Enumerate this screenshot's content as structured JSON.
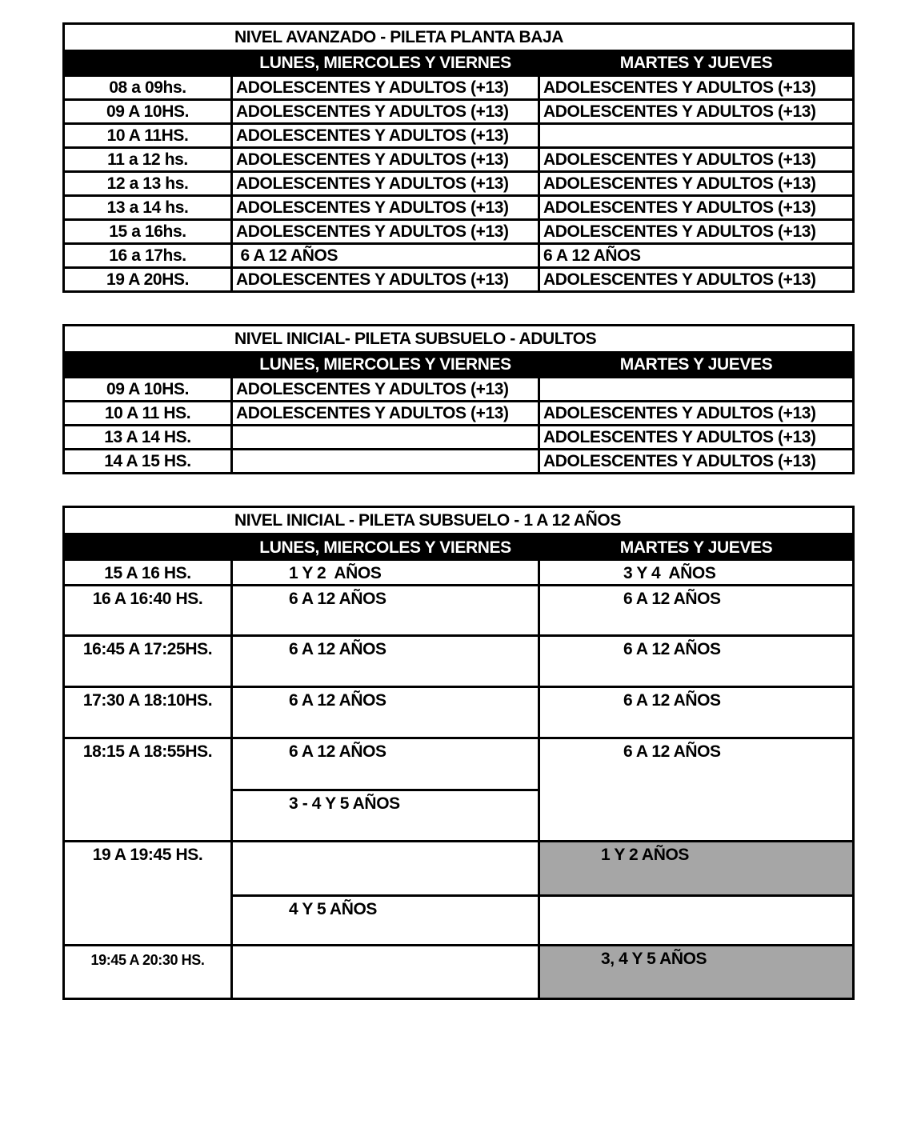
{
  "colors": {
    "page_bg": "#ffffff",
    "header_bg": "#000000",
    "header_text": "#ffffff",
    "shaded_cell": "#a6a6a6",
    "border": "#000000",
    "text": "#000000"
  },
  "tables": [
    {
      "title": "NIVEL AVANZADO - PILETA PLANTA BAJA",
      "header": {
        "col1": "",
        "col2": "LUNES, MIERCOLES Y VIERNES",
        "col3": "MARTES Y JUEVES"
      },
      "rows": [
        {
          "time": "08 a 09hs.",
          "lmv": "ADOLESCENTES Y ADULTOS (+13)",
          "mj": "ADOLESCENTES Y ADULTOS (+13)"
        },
        {
          "time": "09 A 10HS.",
          "lmv": "ADOLESCENTES Y ADULTOS (+13)",
          "mj": "ADOLESCENTES Y ADULTOS (+13)"
        },
        {
          "time": "10 A 11HS.",
          "lmv": "ADOLESCENTES Y ADULTOS (+13)",
          "mj": ""
        },
        {
          "time": "11 a 12 hs.",
          "lmv": "ADOLESCENTES Y ADULTOS (+13)",
          "mj": "ADOLESCENTES Y ADULTOS (+13)"
        },
        {
          "time": "12 a 13 hs.",
          "lmv": "ADOLESCENTES Y ADULTOS (+13)",
          "mj": "ADOLESCENTES Y ADULTOS (+13)"
        },
        {
          "time": "13 a 14 hs.",
          "lmv": "ADOLESCENTES Y ADULTOS (+13)",
          "mj": "ADOLESCENTES Y ADULTOS (+13)"
        },
        {
          "time": "15 a 16hs.",
          "lmv": "ADOLESCENTES Y ADULTOS (+13)",
          "mj": "ADOLESCENTES Y ADULTOS (+13)"
        },
        {
          "time": "16 a 17hs.",
          "lmv": " 6 A 12 AÑOS",
          "mj": "6 A 12 AÑOS"
        },
        {
          "time": "19 A 20HS.",
          "lmv": "ADOLESCENTES Y ADULTOS (+13)",
          "mj": "ADOLESCENTES Y ADULTOS (+13)"
        }
      ]
    },
    {
      "title": "NIVEL INICIAL- PILETA SUBSUELO - ADULTOS",
      "header": {
        "col1": "",
        "col2": "LUNES, MIERCOLES Y VIERNES",
        "col3": "MARTES Y JUEVES"
      },
      "rows": [
        {
          "time": "09 A 10HS.",
          "lmv": "ADOLESCENTES Y ADULTOS (+13)",
          "mj": ""
        },
        {
          "time": "10 A 11 HS.",
          "lmv": "ADOLESCENTES Y ADULTOS (+13)",
          "mj": "ADOLESCENTES Y ADULTOS (+13)"
        },
        {
          "time": "13 A 14 HS.",
          "lmv": "",
          "mj": "ADOLESCENTES Y ADULTOS (+13)"
        },
        {
          "time": "14 A 15 HS.",
          "lmv": "",
          "mj": "ADOLESCENTES Y ADULTOS (+13)"
        }
      ]
    },
    {
      "title": "NIVEL INICIAL - PILETA SUBSUELO - 1 A 12 AÑOS",
      "header": {
        "col1": "",
        "col2": "LUNES, MIERCOLES Y VIERNES",
        "col3": "MARTES Y JUEVES"
      },
      "rows": [
        {
          "time": "15 A 16 HS.",
          "lmv": "1 Y 2  AÑOS",
          "mj": "3 Y 4  AÑOS"
        },
        {
          "time": "16 A 16:40 HS.",
          "lmv": "6 A 12 AÑOS",
          "mj": "6 A 12 AÑOS"
        },
        {
          "time": "16:45 A 17:25HS.",
          "lmv": "6 A 12 AÑOS",
          "mj": "6 A 12 AÑOS"
        },
        {
          "time": "17:30 A 18:10HS.",
          "lmv": "6 A 12 AÑOS",
          "mj": "6 A 12 AÑOS"
        },
        {
          "time": "18:15 A 18:55HS.",
          "lmv_top": "6 A 12 AÑOS",
          "lmv_bottom": "3 - 4 Y 5 AÑOS",
          "mj": "6 A 12 AÑOS"
        },
        {
          "time": "19 A 19:45 HS.",
          "lmv_top": "",
          "lmv_bottom": "4 Y 5 AÑOS",
          "mj_top": "1 Y 2 AÑOS",
          "mj_bottom": ""
        },
        {
          "time": "19:45 A 20:30 HS.",
          "lmv": "",
          "mj": "3, 4 Y 5 AÑOS"
        }
      ]
    }
  ]
}
